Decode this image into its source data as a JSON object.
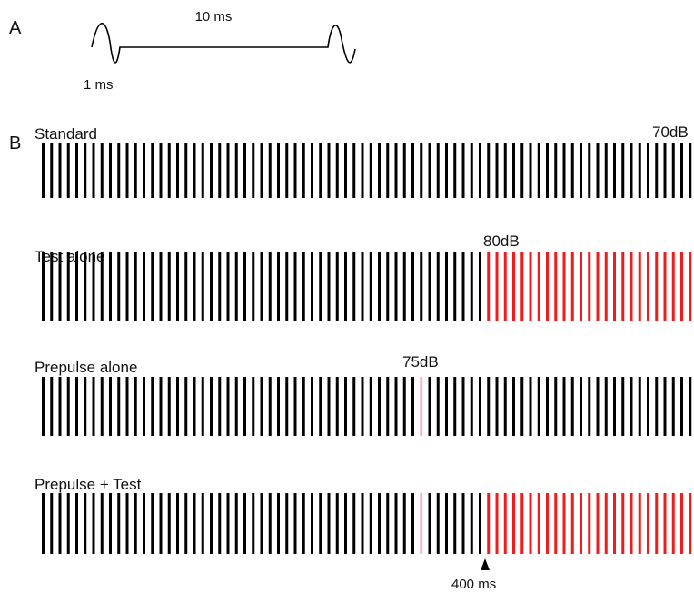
{
  "panel_a": {
    "letter": "A",
    "interval_label": "10 ms",
    "pulse_label": "1 ms"
  },
  "panel_b": {
    "letter": "B",
    "timing_label": "400 ms",
    "rows": [
      {
        "title": "Standard",
        "level_label": "70dB",
        "pattern": "standard"
      },
      {
        "title": "Test alone",
        "level_label": "80dB",
        "pattern": "test"
      },
      {
        "title": "Prepulse alone",
        "level_label": "75dB",
        "pattern": "prepulse"
      },
      {
        "title": "Prepulse + Test",
        "level_label": "",
        "pattern": "prepulse_test"
      }
    ]
  },
  "colors": {
    "background_pulse": "#000000",
    "test_pulse": "#ee1c1c",
    "prepulse": "#f4b8c8",
    "waveform": "#000000"
  }
}
